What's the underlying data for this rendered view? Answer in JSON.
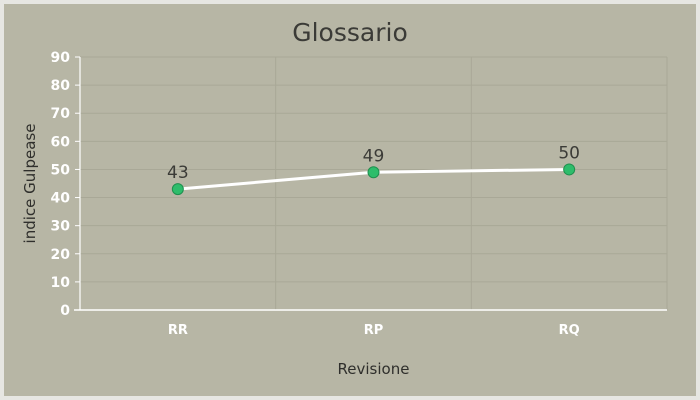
{
  "chart_data": {
    "type": "line",
    "title": "Glossario",
    "xlabel": "Revisione",
    "ylabel": "indice Gulpease",
    "categories": [
      "RR",
      "RP",
      "RQ"
    ],
    "series": [
      {
        "values": [
          43,
          49,
          50
        ]
      }
    ],
    "data_labels": [
      "43",
      "49",
      "50"
    ],
    "ylim": [
      0,
      90
    ],
    "yticks": [
      "0",
      "10",
      "20",
      "30",
      "40",
      "50",
      "60",
      "70",
      "80",
      "90"
    ],
    "grid": true,
    "legend": "none",
    "colors": {
      "background": "#b7b6a5",
      "line": "#ffffff",
      "marker": "#2ebd6b",
      "marker_stroke": "#1f8f4e"
    }
  }
}
